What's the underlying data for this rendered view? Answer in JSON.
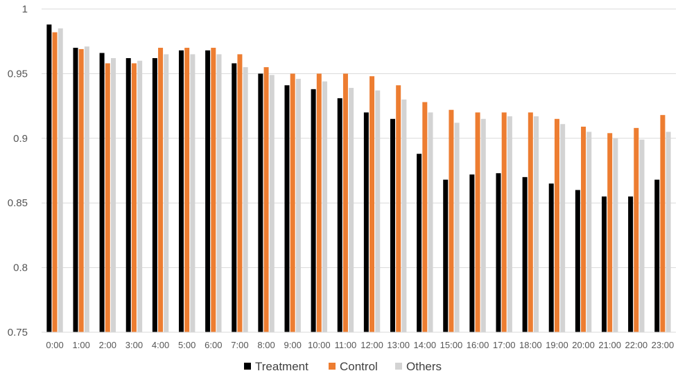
{
  "chart_data": {
    "type": "bar",
    "title": "",
    "xlabel": "",
    "ylabel": "",
    "ylim": [
      0.75,
      1
    ],
    "yticks": [
      "0.75",
      "0.8",
      "0.85",
      "0.9",
      "0.95",
      "1"
    ],
    "grid": true,
    "legend_position": "bottom",
    "categories": [
      "0:00",
      "1:00",
      "2:00",
      "3:00",
      "4:00",
      "5:00",
      "6:00",
      "7:00",
      "8:00",
      "9:00",
      "10:00",
      "11:00",
      "12:00",
      "13:00",
      "14:00",
      "15:00",
      "16:00",
      "17:00",
      "18:00",
      "19:00",
      "20:00",
      "21:00",
      "22:00",
      "23:00"
    ],
    "series": [
      {
        "name": "Treatment",
        "color": "#000000",
        "values": [
          0.988,
          0.97,
          0.966,
          0.962,
          0.962,
          0.968,
          0.968,
          0.958,
          0.95,
          0.941,
          0.938,
          0.931,
          0.92,
          0.915,
          0.888,
          0.868,
          0.872,
          0.873,
          0.87,
          0.865,
          0.86,
          0.855,
          0.855,
          0.868
        ]
      },
      {
        "name": "Control",
        "color": "#ED7D31",
        "values": [
          0.982,
          0.969,
          0.958,
          0.958,
          0.97,
          0.97,
          0.97,
          0.965,
          0.955,
          0.95,
          0.95,
          0.95,
          0.948,
          0.941,
          0.928,
          0.922,
          0.92,
          0.92,
          0.92,
          0.915,
          0.909,
          0.904,
          0.908,
          0.918
        ]
      },
      {
        "name": "Others",
        "color": "#D3D3D3",
        "values": [
          0.985,
          0.971,
          0.962,
          0.96,
          0.965,
          0.965,
          0.965,
          0.955,
          0.949,
          0.946,
          0.944,
          0.939,
          0.937,
          0.93,
          0.92,
          0.912,
          0.915,
          0.917,
          0.917,
          0.911,
          0.905,
          0.9,
          0.899,
          0.905
        ]
      }
    ]
  }
}
